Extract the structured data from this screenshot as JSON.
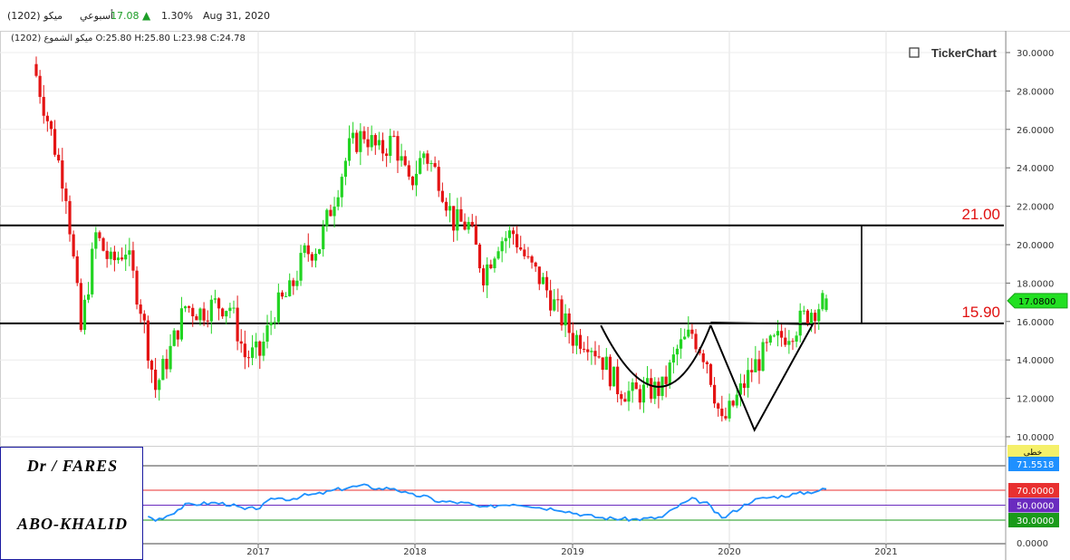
{
  "header": {
    "symbol": "(1202) ميكو",
    "period": "أسبوعي",
    "last": "17.08",
    "change_pct": "1.30%",
    "date": "Aug 31, 2020",
    "up_color": "#1e9e28",
    "ohlc": "ميكو الشموع (1202) O:25.80  H:25.80  L:23.98  C:24.78"
  },
  "watermark": "TickerChart",
  "signature": {
    "line1": "Dr / FARES",
    "line2": "ABO-KHALID"
  },
  "chart_data": [
    {
      "type": "candlestick",
      "x_ticks": [
        "2017",
        "2018",
        "2019",
        "2020",
        "2021"
      ],
      "y_ticks": [
        "30.0000",
        "28.0000",
        "26.0000",
        "24.0000",
        "22.0000",
        "20.0000",
        "18.0000",
        "16.0000",
        "14.0000",
        "12.0000",
        "10.0000"
      ],
      "ylim": [
        9.5,
        30.3
      ],
      "x": [
        "2016-03",
        "2016-04",
        "2016-05",
        "2016-06",
        "2016-07",
        "2016-08",
        "2016-09",
        "2016-10",
        "2016-11",
        "2016-12",
        "2017-01",
        "2017-02",
        "2017-03",
        "2017-04",
        "2017-05",
        "2017-06",
        "2017-07",
        "2017-08",
        "2017-09",
        "2017-10",
        "2017-11",
        "2017-12",
        "2018-01",
        "2018-02",
        "2018-03",
        "2018-04",
        "2018-05",
        "2018-06",
        "2018-07",
        "2018-08",
        "2018-09",
        "2018-10",
        "2018-11",
        "2018-12",
        "2019-01",
        "2019-02",
        "2019-03",
        "2019-04",
        "2019-05",
        "2019-06",
        "2019-07",
        "2019-08",
        "2019-09",
        "2019-10",
        "2019-11",
        "2019-12",
        "2020-01",
        "2020-02",
        "2020-03",
        "2020-04",
        "2020-05",
        "2020-06",
        "2020-07",
        "2020-08"
      ],
      "close": [
        28.8,
        25.8,
        22.8,
        15.5,
        20.5,
        19.0,
        19.8,
        16.8,
        12.5,
        14.5,
        16.8,
        16.5,
        16.9,
        16.8,
        14.2,
        14.3,
        16.6,
        17.5,
        19.5,
        20.0,
        22.5,
        25.0,
        25.8,
        24.8,
        25.5,
        23.0,
        24.8,
        23.5,
        21.2,
        21.0,
        18.5,
        20.2,
        20.6,
        19.0,
        18.0,
        16.5,
        15.2,
        15.1,
        14.0,
        12.6,
        12.2,
        12.4,
        12.5,
        14.5,
        15.4,
        14.0,
        10.6,
        12.0,
        13.5,
        14.5,
        15.2,
        15.8,
        16.6,
        17.08
      ],
      "high_max": 30.0,
      "low_min": 10.3,
      "levels": [
        {
          "value": 21.0,
          "label": "21.00"
        },
        {
          "value": 15.9,
          "label": "15.90"
        }
      ],
      "last_label": "17.0800",
      "annotations": [
        "cup-and-handle arc",
        "V bottom 10.3"
      ]
    },
    {
      "type": "line",
      "name": "RSI",
      "axis_title": "خطى",
      "ylim": [
        0,
        100
      ],
      "y_ticks": [
        "0.0000"
      ],
      "levels": [
        {
          "value": 70,
          "label": "70.0000",
          "color": "#e83030"
        },
        {
          "value": 50,
          "label": "50.0000",
          "color": "#6a2bbf"
        },
        {
          "value": 30,
          "label": "30.0000",
          "color": "#1a9a1a"
        }
      ],
      "last_label": "71.5518",
      "values": [
        45,
        46,
        40,
        44,
        52,
        50,
        48,
        40,
        30,
        38,
        50,
        52,
        53,
        51,
        44,
        47,
        60,
        58,
        63,
        65,
        70,
        74,
        76,
        72,
        73,
        64,
        62,
        55,
        54,
        52,
        46,
        50,
        52,
        50,
        46,
        45,
        40,
        36,
        33,
        32,
        31,
        32,
        34,
        48,
        58,
        52,
        32,
        44,
        56,
        60,
        62,
        65,
        68,
        71.55
      ]
    }
  ]
}
